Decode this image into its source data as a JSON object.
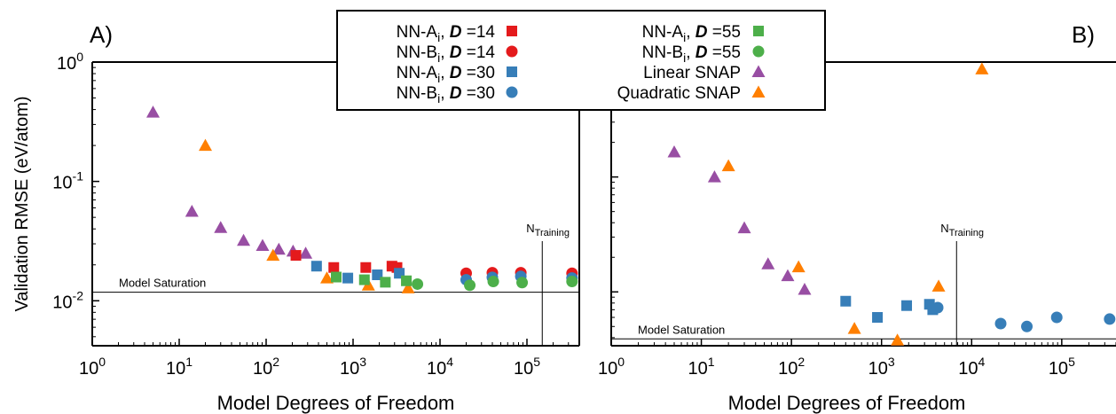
{
  "colors": {
    "red": "#e41a1c",
    "green": "#4daf4a",
    "blue": "#377eb8",
    "purple": "#984ea3",
    "orange": "#ff7f00"
  },
  "ylabel": "Validation RMSE (eV/atom)",
  "legend": {
    "entries": [
      {
        "key": "nnA14",
        "prefix": "NN-A",
        "sub": "i",
        "d": "14",
        "color": "red",
        "marker": "square"
      },
      {
        "key": "nnB14",
        "prefix": "NN-B",
        "sub": "i",
        "d": "14",
        "color": "red",
        "marker": "circle"
      },
      {
        "key": "nnA30",
        "prefix": "NN-A",
        "sub": "i",
        "d": "30",
        "color": "blue",
        "marker": "square"
      },
      {
        "key": "nnB30",
        "prefix": "NN-B",
        "sub": "i",
        "d": "30",
        "color": "blue",
        "marker": "circle"
      },
      {
        "key": "nnA55",
        "prefix": "NN-A",
        "sub": "i",
        "d": "55",
        "color": "green",
        "marker": "square"
      },
      {
        "key": "nnB55",
        "prefix": "NN-B",
        "sub": "i",
        "d": "55",
        "color": "green",
        "marker": "circle"
      },
      {
        "key": "lin",
        "label": "Linear SNAP",
        "color": "purple",
        "marker": "triangle"
      },
      {
        "key": "quad",
        "label": "Quadratic SNAP",
        "color": "orange",
        "marker": "triangle"
      }
    ],
    "d_symbol": "D",
    "d_sep": " ="
  },
  "chart_data": [
    {
      "type": "scatter",
      "panel_label": "A)",
      "xlabel": "Model Degrees of Freedom",
      "ylabel": "Validation RMSE (eV/atom)",
      "xscale": "log",
      "yscale": "log",
      "xlim": [
        1,
        400000
      ],
      "ylim": [
        0.0042,
        1.0
      ],
      "x_ticks": [
        1,
        10,
        100,
        1000,
        10000,
        100000
      ],
      "x_tick_labels": [
        {
          "base": "10",
          "exp": "0"
        },
        {
          "base": "10",
          "exp": "1"
        },
        {
          "base": "10",
          "exp": "2"
        },
        {
          "base": "10",
          "exp": "3"
        },
        {
          "base": "10",
          "exp": "4"
        },
        {
          "base": "10",
          "exp": "5"
        }
      ],
      "y_ticks": [
        0.01,
        0.1,
        1.0
      ],
      "y_tick_labels": [
        {
          "base": "10",
          "exp": "-2"
        },
        {
          "base": "10",
          "exp": "-1"
        },
        {
          "base": "10",
          "exp": "0"
        }
      ],
      "saturation": {
        "y": 0.0118,
        "label": "Model Saturation"
      },
      "n_training": {
        "x": 150000,
        "label": "N",
        "sub": "Training"
      },
      "series": [
        {
          "key": "lin",
          "name": "Linear SNAP",
          "points": [
            [
              5,
              0.38
            ],
            [
              14,
              0.056
            ],
            [
              30,
              0.041
            ],
            [
              55,
              0.032
            ],
            [
              91,
              0.029
            ],
            [
              140,
              0.027
            ],
            [
              204,
              0.026
            ],
            [
              285,
              0.025
            ]
          ]
        },
        {
          "key": "quad",
          "name": "Quadratic SNAP",
          "points": [
            [
              20,
              0.2
            ],
            [
              120,
              0.024
            ],
            [
              500,
              0.0155
            ],
            [
              1500,
              0.0135
            ],
            [
              4300,
              0.0128
            ]
          ]
        },
        {
          "key": "nnA14",
          "name": "NN-Ai, D=14",
          "points": [
            [
              220,
              0.024
            ],
            [
              600,
              0.019
            ],
            [
              1400,
              0.019
            ],
            [
              2800,
              0.0195
            ],
            [
              3200,
              0.019
            ]
          ]
        },
        {
          "key": "nnA30",
          "name": "NN-Ai, D=30",
          "points": [
            [
              380,
              0.0195
            ],
            [
              870,
              0.0155
            ],
            [
              1900,
              0.0165
            ],
            [
              3400,
              0.017
            ]
          ]
        },
        {
          "key": "nnA55",
          "name": "NN-Ai, D=55",
          "points": [
            [
              640,
              0.0158
            ],
            [
              1350,
              0.015
            ],
            [
              2350,
              0.0143
            ],
            [
              4100,
              0.0147
            ]
          ]
        },
        {
          "key": "nnB14",
          "name": "NN-Bi, D=14",
          "points": [
            [
              20000,
              0.017
            ],
            [
              40000,
              0.0172
            ],
            [
              85000,
              0.0172
            ],
            [
              330000,
              0.017
            ]
          ]
        },
        {
          "key": "nnB30",
          "name": "NN-Bi, D=30",
          "points": [
            [
              20000,
              0.015
            ],
            [
              40000,
              0.0157
            ],
            [
              85000,
              0.016
            ],
            [
              330000,
              0.0155
            ]
          ]
        },
        {
          "key": "nnB55",
          "name": "NN-Bi, D=55",
          "points": [
            [
              5500,
              0.0138
            ],
            [
              22000,
              0.0135
            ],
            [
              41000,
              0.0145
            ],
            [
              88000,
              0.0142
            ],
            [
              330000,
              0.0145
            ]
          ]
        }
      ]
    },
    {
      "type": "scatter",
      "panel_label": "B)",
      "xlabel": "Model Degrees of Freedom",
      "ylabel": "",
      "xscale": "log",
      "yscale": "log",
      "xlim": [
        1,
        400000
      ],
      "ylim": [
        0.0034,
        1.0
      ],
      "x_ticks": [
        1,
        10,
        100,
        1000,
        10000,
        100000
      ],
      "x_tick_labels": [
        {
          "base": "10",
          "exp": "0"
        },
        {
          "base": "10",
          "exp": "1"
        },
        {
          "base": "10",
          "exp": "2"
        },
        {
          "base": "10",
          "exp": "3"
        },
        {
          "base": "10",
          "exp": "4"
        },
        {
          "base": "10",
          "exp": "5"
        }
      ],
      "y_ticks": [
        0.01,
        0.1,
        1.0
      ],
      "y_tick_labels": [],
      "saturation": {
        "y": 0.0039,
        "label": "Model Saturation"
      },
      "n_training": {
        "x": 6800,
        "label": "N",
        "sub": "Training"
      },
      "series": [
        {
          "key": "lin",
          "name": "Linear SNAP",
          "points": [
            [
              5,
              0.165
            ],
            [
              14,
              0.1
            ],
            [
              30,
              0.036
            ],
            [
              55,
              0.0175
            ],
            [
              91,
              0.0138
            ],
            [
              140,
              0.0105
            ]
          ]
        },
        {
          "key": "quad",
          "name": "Quadratic SNAP",
          "points": [
            [
              20,
              0.125
            ],
            [
              120,
              0.0165
            ],
            [
              500,
              0.0048
            ],
            [
              1500,
              0.0038
            ],
            [
              4300,
              0.0112
            ],
            [
              13000,
              0.87
            ]
          ]
        },
        {
          "key": "nnA30",
          "name": "NN-Ai, D=30",
          "points": [
            [
              400,
              0.0083
            ],
            [
              900,
              0.006
            ],
            [
              1900,
              0.0076
            ],
            [
              3400,
              0.0078
            ],
            [
              3700,
              0.007
            ]
          ]
        },
        {
          "key": "nnB30",
          "name": "NN-Bi, D=30",
          "points": [
            [
              4200,
              0.0073
            ],
            [
              21000,
              0.0053
            ],
            [
              41000,
              0.005
            ],
            [
              88000,
              0.006
            ],
            [
              340000,
              0.0058
            ]
          ]
        }
      ]
    }
  ]
}
